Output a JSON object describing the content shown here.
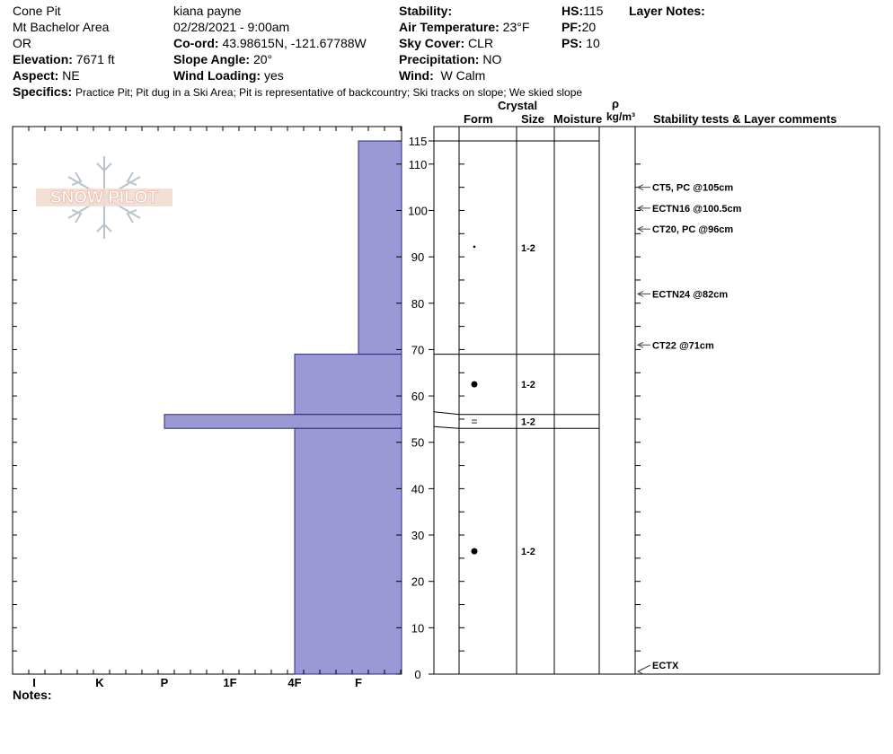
{
  "header": {
    "col1": [
      "Cone Pit",
      "Mt Bachelor Area",
      "OR"
    ],
    "elevation_label": "Elevation:",
    "elevation": "7671 ft",
    "aspect_label": "Aspect:",
    "aspect": "NE",
    "observer": "kiana payne",
    "datetime": "02/28/2021 - 9:00am",
    "coord_label": "Co-ord:",
    "coord": "43.98615N, -121.67788W",
    "slope_label": "Slope Angle:",
    "slope": "20°",
    "wind_loading_label": "Wind Loading:",
    "wind_loading": "yes",
    "stability_label": "Stability:",
    "air_temp_label": "Air Temperature:",
    "air_temp": "23°F",
    "sky_label": "Sky Cover:",
    "sky": "CLR",
    "precip_label": "Precipitation:",
    "precip": "NO",
    "wind_label": "Wind:",
    "wind": "W Calm",
    "hs_label": "HS:",
    "hs": "115",
    "pf_label": "PF:",
    "pf": "20",
    "ps_label": "PS:",
    "ps": "10",
    "layer_notes_label": "Layer Notes:",
    "specifics_label": "Specifics:",
    "specifics": "Practice Pit; Pit dug in a Ski Area; Pit is representative of backcountry; Ski tracks on slope; We skied slope"
  },
  "columns": {
    "crystal": "Crystal",
    "form": "Form",
    "size": "Size",
    "moisture": "Moisture",
    "rho": "ρ",
    "density_unit": "kg/m³",
    "comments": "Stability tests & Layer comments"
  },
  "notes_label": "Notes:",
  "logo_text": "SNOW PILOT",
  "chart_data": {
    "type": "bar",
    "y_range": [
      0,
      115
    ],
    "y_ticks": [
      0,
      10,
      20,
      30,
      40,
      50,
      60,
      70,
      80,
      90,
      100,
      110,
      115
    ],
    "hardness_labels": [
      "I",
      "K",
      "P",
      "1F",
      "4F",
      "F"
    ],
    "hardness_layers": [
      {
        "top": 115,
        "bottom": 69,
        "hardness": "F"
      },
      {
        "top": 69,
        "bottom": 56,
        "hardness": "4F"
      },
      {
        "top": 56,
        "bottom": 53,
        "hardness": "P"
      },
      {
        "top": 53,
        "bottom": 0,
        "hardness": "4F"
      }
    ],
    "bar_color": "#9a99d6",
    "layer_boundaries": [
      115,
      69,
      56,
      53
    ],
    "crystals": [
      {
        "height": 92,
        "form": "·",
        "size": "1-2"
      },
      {
        "height": 62.5,
        "form": "●",
        "size": "1-2"
      },
      {
        "height": 54.5,
        "form": "=",
        "size": "1-2"
      },
      {
        "height": 26.5,
        "form": "●",
        "size": "1-2"
      }
    ],
    "stability_tests": [
      {
        "height": 105,
        "label": "CT5, PC @105cm"
      },
      {
        "height": 100.5,
        "label": "ECTN16 @100.5cm"
      },
      {
        "height": 96,
        "label": "CT20, PC @96cm"
      },
      {
        "height": 82,
        "label": "ECTN24 @82cm"
      },
      {
        "height": 71,
        "label": "CT22 @71cm"
      },
      {
        "height": 0,
        "label": "ECTX"
      }
    ]
  }
}
